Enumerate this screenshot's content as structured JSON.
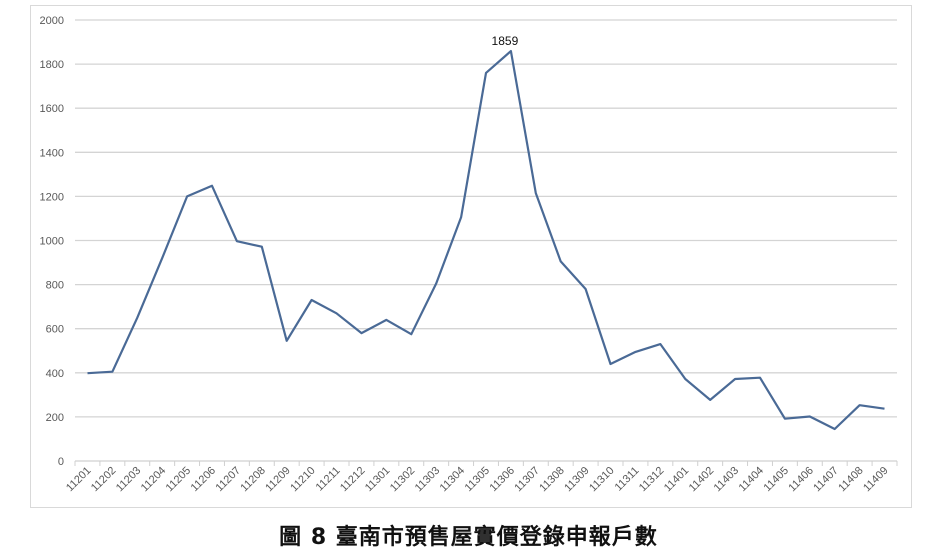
{
  "caption": "圖 8 臺南市預售屋實價登錄申報戶數",
  "chart_data": {
    "type": "line",
    "title": "",
    "xlabel": "",
    "ylabel": "",
    "ylim": [
      0,
      2000
    ],
    "yticks": [
      0,
      200,
      400,
      600,
      800,
      1000,
      1200,
      1400,
      1600,
      1800,
      2000
    ],
    "grid": true,
    "legend": null,
    "line_color": "#4a6a96",
    "categories": [
      "11201",
      "11202",
      "11203",
      "11204",
      "11205",
      "11206",
      "11207",
      "11208",
      "11209",
      "11210",
      "11211",
      "11212",
      "11301",
      "11302",
      "11303",
      "11304",
      "11305",
      "11306",
      "11307",
      "11308",
      "11309",
      "11310",
      "11311",
      "11312",
      "11401",
      "11402",
      "11403",
      "11404",
      "11405",
      "11406",
      "11407",
      "11408",
      "11409"
    ],
    "series": [
      {
        "name": "預售屋實價登錄申報戶數",
        "values": [
          398,
          405,
          650,
          920,
          1200,
          1248,
          997,
          972,
          545,
          730,
          670,
          580,
          640,
          575,
          805,
          1105,
          1760,
          1859,
          1215,
          905,
          780,
          440,
          495,
          530,
          372,
          277,
          372,
          378,
          192,
          202,
          145,
          253,
          237
        ]
      }
    ],
    "annotations": [
      {
        "category": "11306",
        "text": "1859"
      }
    ]
  }
}
